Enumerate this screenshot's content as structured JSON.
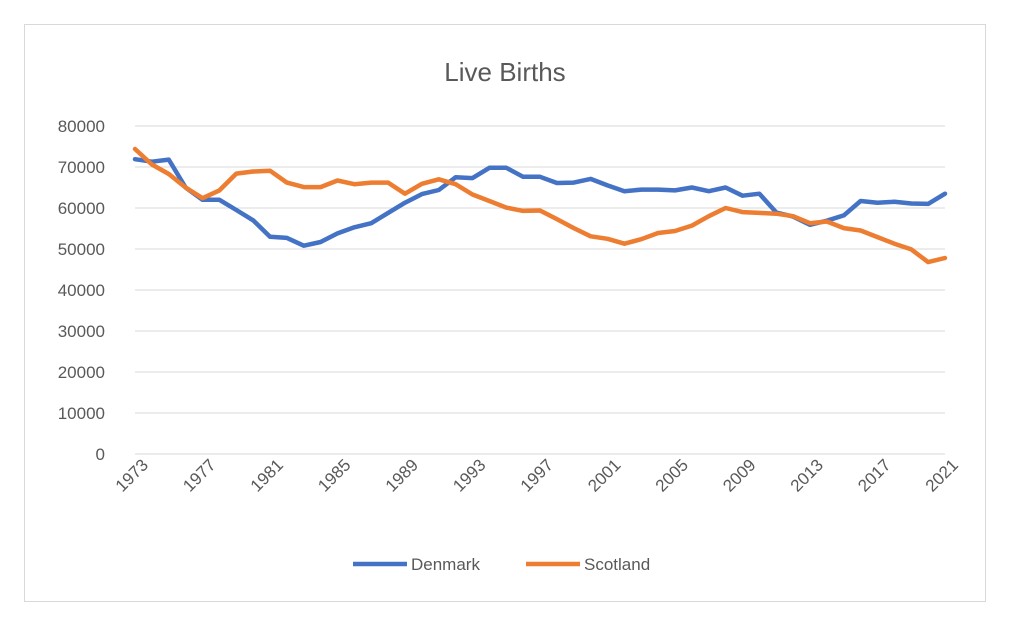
{
  "chart_data": {
    "type": "line",
    "title": "Live Births",
    "xlabel": "",
    "ylabel": "",
    "ylim": [
      0,
      80000
    ],
    "yticks": [
      "0",
      "10000",
      "20000",
      "30000",
      "40000",
      "50000",
      "60000",
      "70000",
      "80000"
    ],
    "xtick_labels": [
      "1973",
      "1977",
      "1981",
      "1985",
      "1989",
      "1993",
      "1997",
      "2001",
      "2005",
      "2009",
      "2013",
      "2017",
      "2021"
    ],
    "grid": true,
    "legend": "bottom",
    "x": [
      1973,
      1974,
      1975,
      1976,
      1977,
      1978,
      1979,
      1980,
      1981,
      1982,
      1983,
      1984,
      1985,
      1986,
      1987,
      1988,
      1989,
      1990,
      1991,
      1992,
      1993,
      1994,
      1995,
      1996,
      1997,
      1998,
      1999,
      2000,
      2001,
      2002,
      2003,
      2004,
      2005,
      2006,
      2007,
      2008,
      2009,
      2010,
      2011,
      2012,
      2013,
      2014,
      2015,
      2016,
      2017,
      2018,
      2019,
      2020,
      2021
    ],
    "series": [
      {
        "name": "Denmark",
        "color": "#4472c4",
        "values": [
          71900,
          71300,
          71800,
          65000,
          62000,
          62000,
          59500,
          57000,
          53000,
          52700,
          50800,
          51700,
          53800,
          55300,
          56300,
          58800,
          61300,
          63400,
          64400,
          67500,
          67300,
          69800,
          69800,
          67600,
          67600,
          66100,
          66200,
          67100,
          65500,
          64100,
          64500,
          64500,
          64300,
          65000,
          64100,
          65000,
          63000,
          63500,
          58900,
          57900,
          55900,
          56900,
          58200,
          61700,
          61300,
          61500,
          61100,
          61000,
          63500
        ]
      },
      {
        "name": "Scotland",
        "color": "#ed7d31",
        "values": [
          74400,
          70600,
          68300,
          65000,
          62400,
          64300,
          68400,
          68900,
          69100,
          66200,
          65100,
          65100,
          66700,
          65800,
          66200,
          66200,
          63500,
          65900,
          67000,
          65800,
          63300,
          61700,
          60100,
          59300,
          59400,
          57300,
          55100,
          53100,
          52500,
          51300,
          52400,
          53900,
          54400,
          55700,
          58000,
          60000,
          59000,
          58800,
          58600,
          58000,
          56300,
          56700,
          55100,
          54500,
          52900,
          51300,
          49900,
          46800,
          47800
        ]
      }
    ]
  }
}
